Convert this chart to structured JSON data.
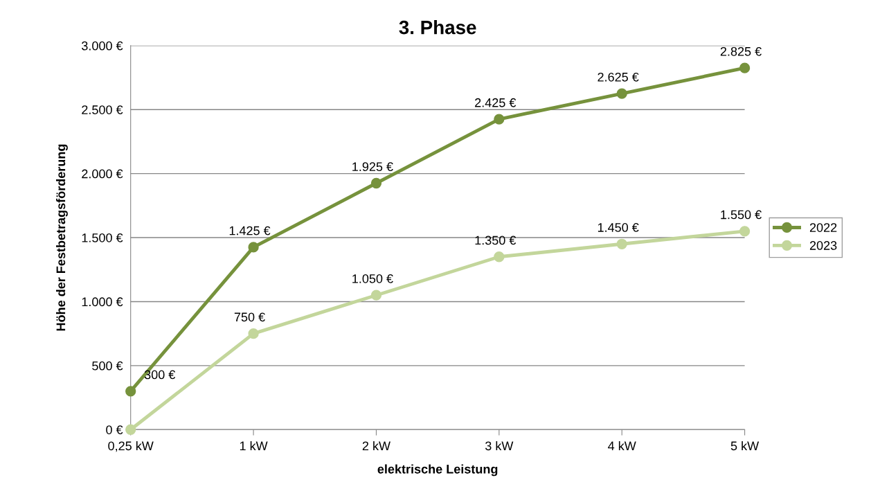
{
  "chart_data": {
    "type": "line",
    "title": "3. Phase",
    "xlabel": "elektrische Leistung",
    "ylabel": "Höhe der Festbetragsförderung",
    "categories": [
      "0,25 kW",
      "1 kW",
      "2 kW",
      "3 kW",
      "4 kW",
      "5 kW"
    ],
    "series": [
      {
        "name": "2022",
        "color": "#76923c",
        "values": [
          300,
          1425,
          1925,
          2425,
          2625,
          2825
        ],
        "value_labels": [
          "300 €",
          "1.425 €",
          "1.925 €",
          "2.425 €",
          "2.625 €",
          "2.825 €"
        ]
      },
      {
        "name": "2023",
        "color": "#c3d69b",
        "values": [
          0,
          750,
          1050,
          1350,
          1450,
          1550
        ],
        "value_labels": [
          null,
          "750 €",
          "1.050 €",
          "1.350 €",
          "1.450 €",
          "1.550 €"
        ]
      }
    ],
    "ylim": [
      0,
      3000
    ],
    "yticks": [
      {
        "value": 0,
        "label": "0 €"
      },
      {
        "value": 500,
        "label": "500 €"
      },
      {
        "value": 1000,
        "label": "1.000 €"
      },
      {
        "value": 1500,
        "label": "1.500 €"
      },
      {
        "value": 2000,
        "label": "2.000 €"
      },
      {
        "value": 2500,
        "label": "2.500 €"
      },
      {
        "value": 3000,
        "label": "3.000 €"
      }
    ],
    "grid": "y",
    "legend": "right",
    "marker": "circle",
    "line_style": "solid"
  }
}
